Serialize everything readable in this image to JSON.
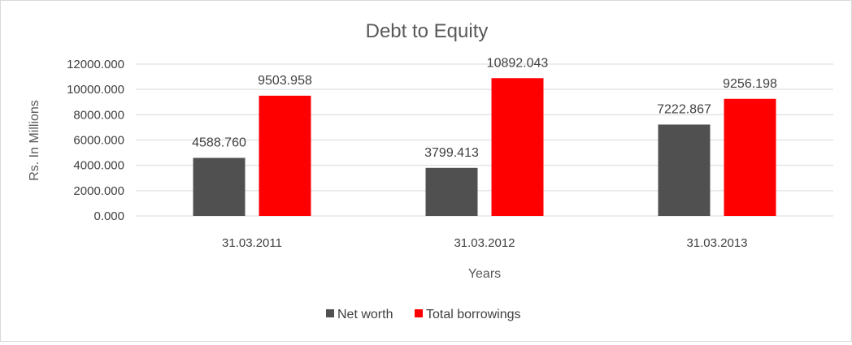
{
  "chart_data": {
    "type": "bar",
    "title": "Debt to Equity",
    "xlabel": "Years",
    "ylabel": "Rs. In Millions",
    "categories": [
      "31.03.2011",
      "31.03.2012",
      "31.03.2013"
    ],
    "series": [
      {
        "name": "Net worth",
        "color": "#505050",
        "values": [
          4588.76,
          3799.413,
          7222.867
        ],
        "labels": [
          "4588.760",
          "3799.413",
          "7222.867"
        ]
      },
      {
        "name": "Total borrowings",
        "color": "#ff0000",
        "values": [
          9503.958,
          10892.043,
          9256.198
        ],
        "labels": [
          "9503.958",
          "10892.043",
          "9256.198"
        ]
      }
    ],
    "ylim": [
      0,
      12000
    ],
    "yticks": [
      "0.000",
      "2000.000",
      "4000.000",
      "6000.000",
      "8000.000",
      "10000.000",
      "12000.000"
    ],
    "grid": true,
    "legend": "bottom"
  }
}
